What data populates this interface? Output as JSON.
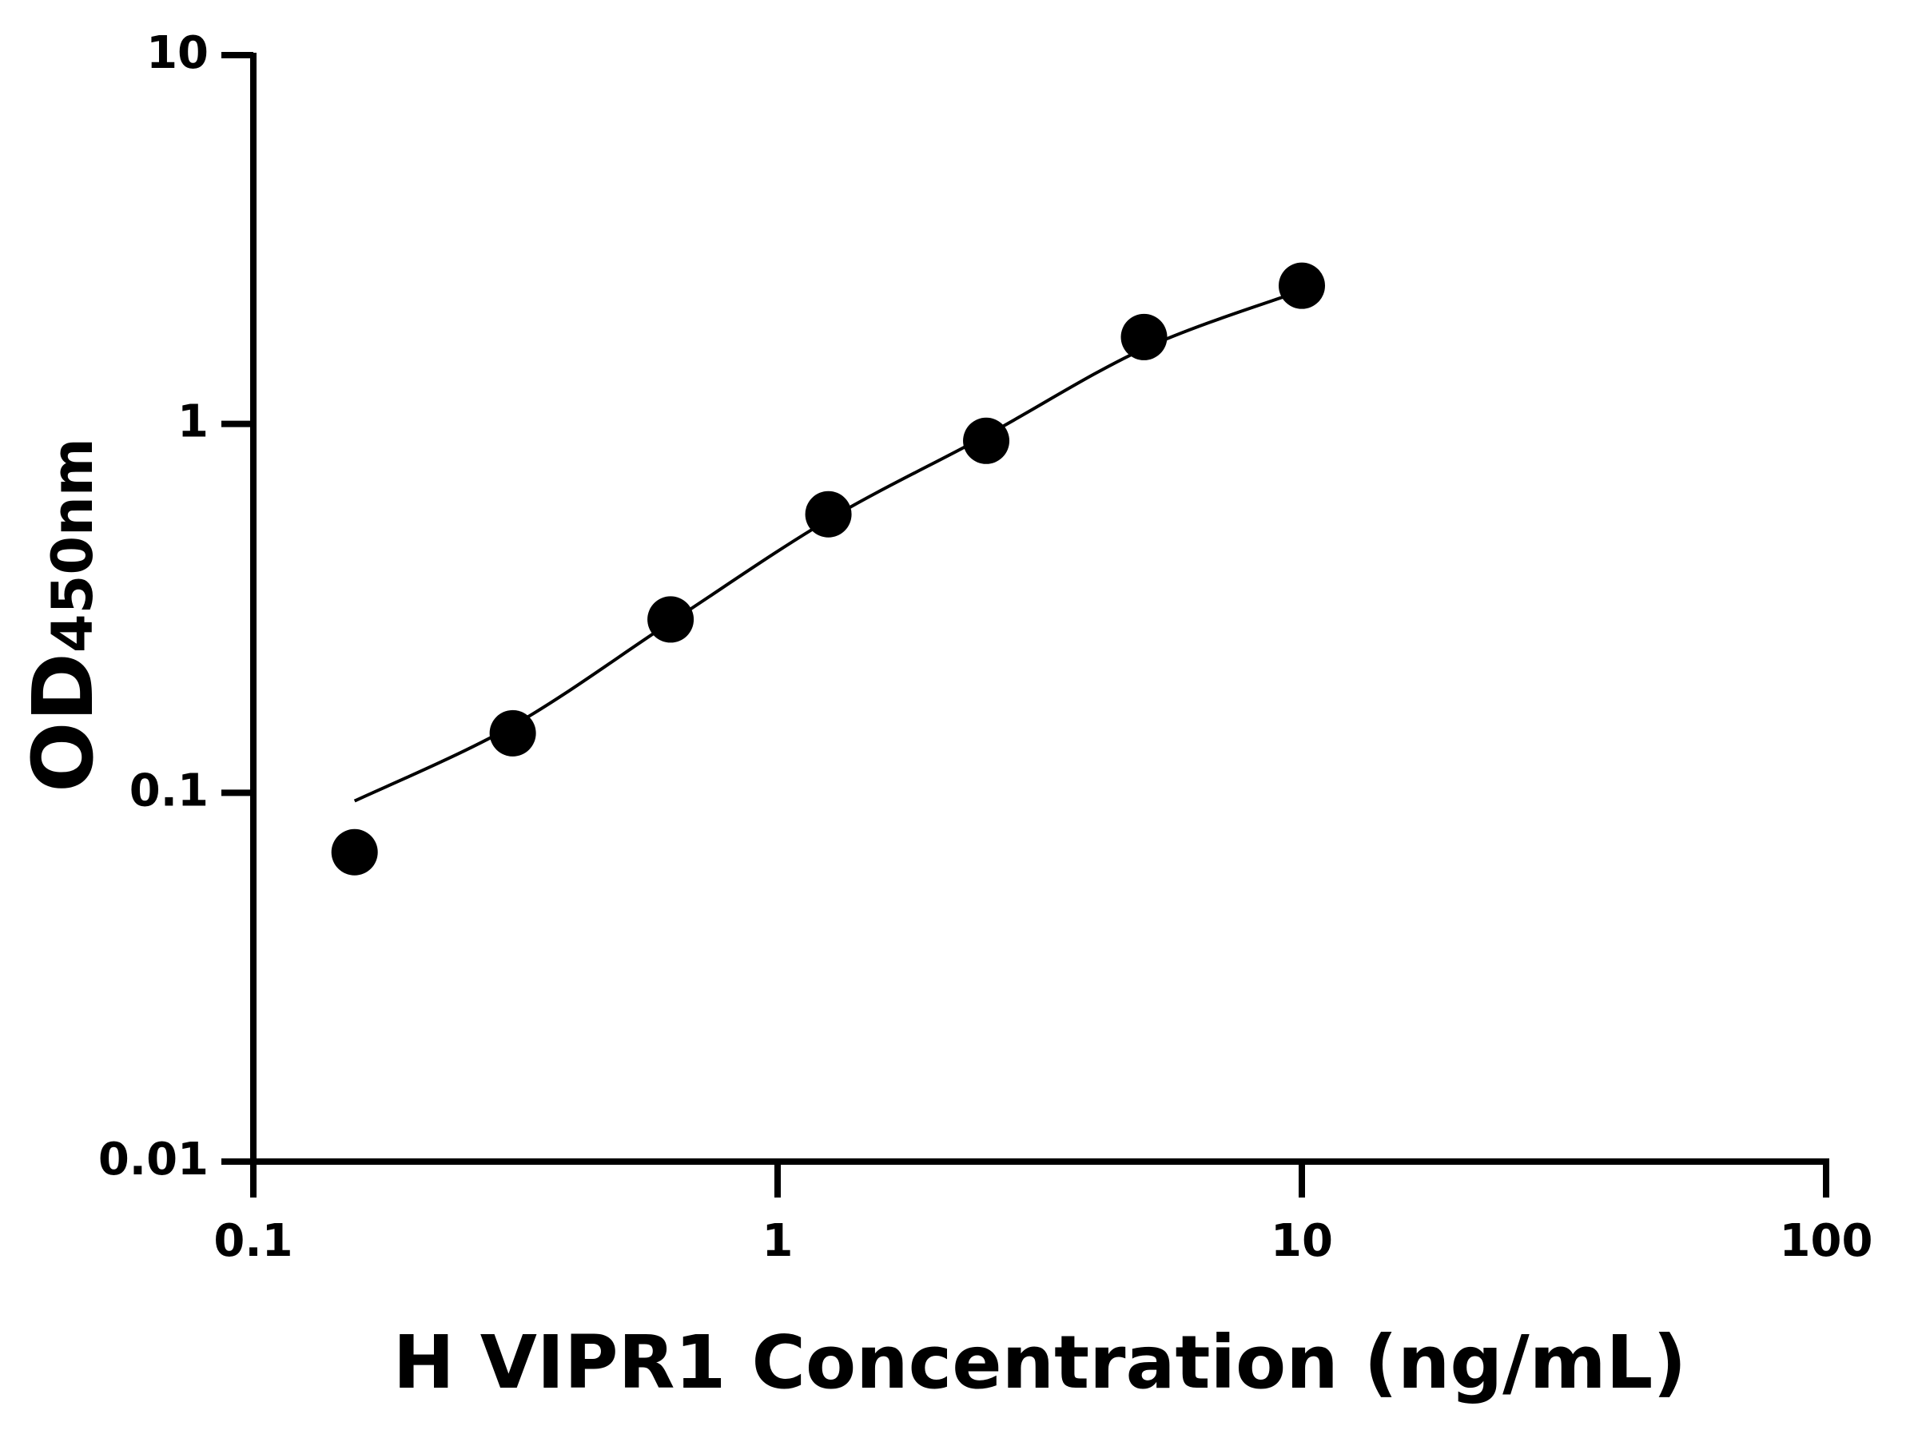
{
  "chart_data": {
    "type": "scatter",
    "title": "",
    "xlabel": "H VIPR1 Concentration (ng/mL)",
    "ylabel_main": "OD",
    "ylabel_sub": "450nm",
    "xscale": "log",
    "yscale": "log",
    "xlim": [
      0.1,
      100
    ],
    "ylim": [
      0.01,
      10
    ],
    "xticks": [
      "0.1",
      "1",
      "10",
      "100"
    ],
    "yticks": [
      "0.01",
      "0.1",
      "1",
      "10"
    ],
    "grid": false,
    "legend": "none",
    "series": [
      {
        "x": [
          0.156,
          0.3125,
          0.625,
          1.25,
          2.5,
          5,
          10
        ],
        "y": [
          0.069,
          0.145,
          0.295,
          0.569,
          0.9,
          1.72,
          2.37
        ],
        "marker": "filled-circle",
        "color": "#000000"
      }
    ],
    "fit_curve": {
      "x": [
        0.156,
        0.3125,
        0.625,
        1.25,
        2.5,
        5,
        10
      ],
      "y": [
        0.095,
        0.152,
        0.29,
        0.55,
        0.93,
        1.6,
        2.3
      ],
      "color": "#000000"
    }
  }
}
